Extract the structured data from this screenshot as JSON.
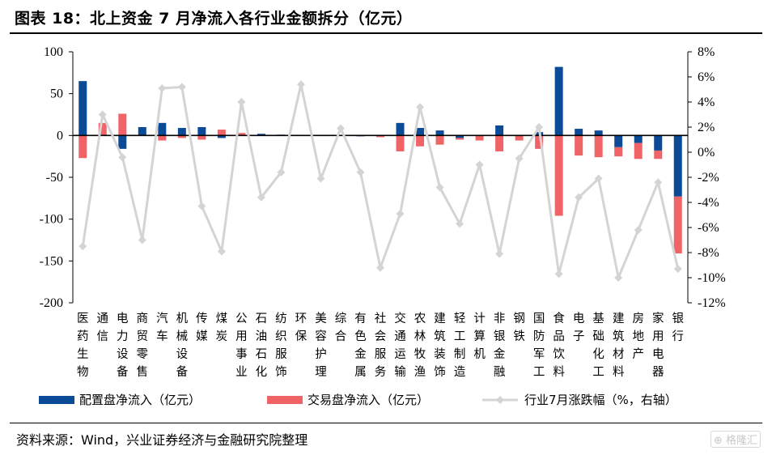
{
  "title": "图表 18：北上资金 7 月净流入各行业金额拆分（亿元）",
  "source": "资料来源：Wind，兴业证券经济与金融研究院整理",
  "watermark": "格隆汇",
  "colors": {
    "series1": "#0a4a96",
    "series2": "#f06468",
    "series3": "#d4d4d4",
    "axis": "#000000"
  },
  "chart_data": {
    "type": "bar",
    "title": "北上资金 7 月净流入各行业金额拆分（亿元）",
    "categories": [
      "医药生物",
      "通信",
      "电力设备",
      "商贸零售",
      "汽车",
      "机械设备",
      "传媒",
      "煤炭",
      "公用事业",
      "石油石化",
      "纺织服饰",
      "环保",
      "美容护理",
      "综合",
      "有色金属",
      "社会服务",
      "交通运输",
      "农林牧渔",
      "建筑装饰",
      "轻工制造",
      "计算机",
      "非银金融",
      "钢铁",
      "国防军工",
      "食品饮料",
      "电子",
      "基础化工",
      "建筑材料",
      "房地产",
      "家用电器",
      "银行"
    ],
    "y_left": {
      "lim": [
        -200,
        100
      ],
      "ticks": [
        100,
        50,
        0,
        -50,
        -100,
        -150,
        -200
      ],
      "tick_labels": [
        "100",
        "50",
        "0",
        "-50",
        "-100",
        "-150",
        "-200"
      ]
    },
    "y_right": {
      "lim": [
        -12,
        8
      ],
      "ticks": [
        8,
        6,
        4,
        2,
        0,
        -2,
        -4,
        -6,
        -8,
        -10,
        -12
      ],
      "tick_labels": [
        "8%",
        "6%",
        "4%",
        "2%",
        "0%",
        "-2%",
        "-4%",
        "-6%",
        "-8%",
        "-10%",
        "-12%"
      ]
    },
    "series": [
      {
        "name": "配置盘净流入（亿元）",
        "type": "bar",
        "axis": "left",
        "values": [
          65,
          0,
          -16,
          10,
          15,
          9,
          10,
          -3,
          0,
          2,
          1,
          0,
          0,
          0,
          -1,
          0,
          15,
          9,
          6,
          -3,
          0,
          12,
          0,
          4,
          82,
          8,
          6,
          -14,
          -9,
          -18,
          -73
        ]
      },
      {
        "name": "交易盘净流入（亿元）",
        "type": "bar",
        "axis": "left",
        "values": [
          -27,
          15,
          26,
          0,
          -6,
          -3,
          -5,
          7,
          3,
          0,
          0,
          0,
          0,
          0,
          0,
          -2,
          -19,
          -13,
          -11,
          -2,
          -6,
          -19,
          -6,
          -16,
          -96,
          -24,
          -26,
          -11,
          -19,
          -10,
          -68
        ]
      },
      {
        "name": "行业7月涨跌幅（%，右轴）",
        "type": "line",
        "axis": "right",
        "values": [
          -7.5,
          3.0,
          -0.4,
          -7.0,
          5.1,
          5.2,
          -4.3,
          -7.9,
          4.0,
          -3.6,
          -1.6,
          5.4,
          -2.1,
          1.9,
          -1.6,
          -9.2,
          -4.9,
          3.6,
          -2.8,
          -5.7,
          -1.0,
          -8.1,
          -0.5,
          2.0,
          -9.7,
          -3.6,
          -2.1,
          -10.0,
          -6.2,
          -2.4,
          -9.3
        ]
      }
    ],
    "legend": {
      "placement": "bottom",
      "labels": [
        "配置盘净流入（亿元）",
        "交易盘净流入（亿元）",
        "行业7月涨跌幅（%，右轴）"
      ]
    },
    "grid": false
  }
}
